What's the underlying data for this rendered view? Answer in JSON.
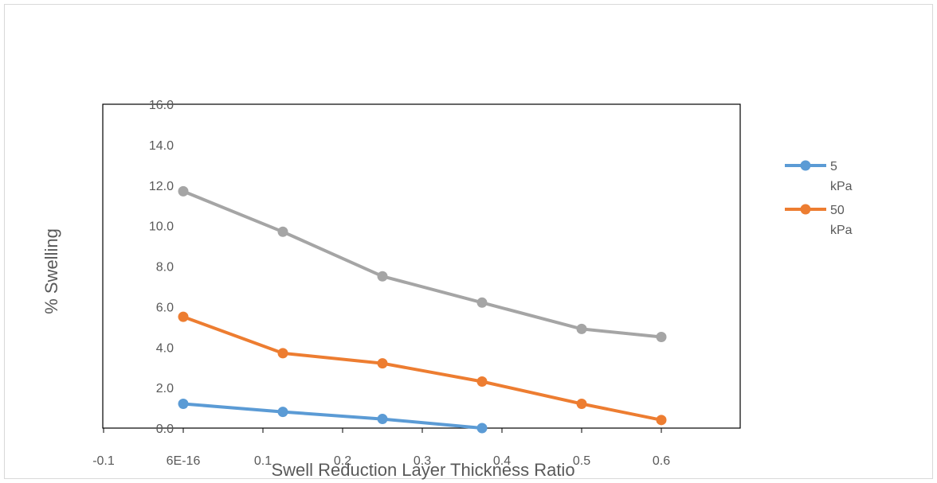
{
  "chart_data": {
    "type": "line",
    "title": "",
    "xlabel": "Swell Reduction Layer Thickness Ratio",
    "ylabel": "% Swelling",
    "xlim": [
      -0.1,
      0.6
    ],
    "ylim": [
      0,
      16
    ],
    "x_tick_labels": [
      "-0.1",
      "6E-16",
      "0.1",
      "0.2",
      "0.3",
      "0.4",
      "0.5",
      "0.6"
    ],
    "x_tick_values": [
      -0.1,
      0,
      0.1,
      0.2,
      0.3,
      0.4,
      0.5,
      0.6
    ],
    "y_tick_labels": [
      "0.0",
      "2.0",
      "4.0",
      "6.0",
      "8.0",
      "10.0",
      "12.0",
      "14.0",
      "16.0"
    ],
    "y_tick_values": [
      0,
      2,
      4,
      6,
      8,
      10,
      12,
      14,
      16
    ],
    "grid": false,
    "legend_position": "right",
    "series": [
      {
        "name": "5 kPa",
        "legend_lines": [
          "5",
          "kPa"
        ],
        "color": "#5B9BD5",
        "x": [
          0,
          0.125,
          0.25,
          0.375
        ],
        "y": [
          1.2,
          0.8,
          0.45,
          0.0
        ]
      },
      {
        "name": "50 kPa",
        "legend_lines": [
          "50",
          "kPa"
        ],
        "color": "#ED7D31",
        "x": [
          0,
          0.125,
          0.25,
          0.375,
          0.5,
          0.6
        ],
        "y": [
          5.5,
          3.7,
          3.2,
          2.3,
          1.2,
          0.4
        ]
      },
      {
        "color": "#A5A5A5",
        "x": [
          0,
          0.125,
          0.25,
          0.375,
          0.5,
          0.6
        ],
        "y": [
          11.7,
          9.7,
          7.5,
          6.2,
          4.9,
          4.5
        ]
      }
    ]
  }
}
